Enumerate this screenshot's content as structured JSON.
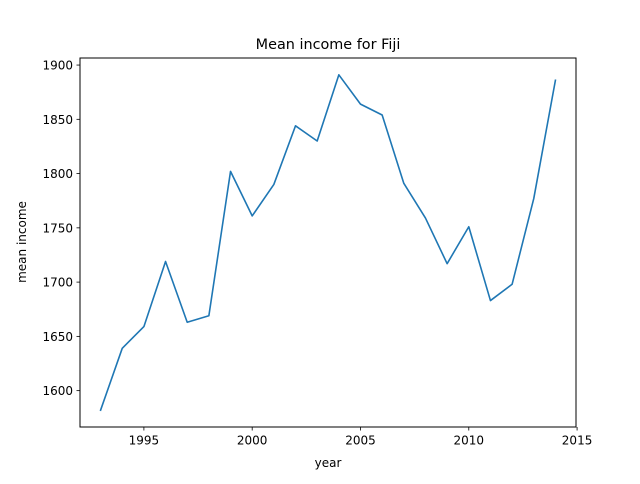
{
  "chart_data": {
    "type": "line",
    "title": "Mean income for Fiji",
    "xlabel": "year",
    "ylabel": "mean income",
    "xlim": [
      1992.05,
      2014.95
    ],
    "ylim": [
      1566.5,
      1906.5
    ],
    "grid": false,
    "x_ticks": [
      1995,
      2000,
      2005,
      2010,
      2015
    ],
    "x_tick_labels": [
      "1995",
      "2000",
      "2005",
      "2010",
      "2015"
    ],
    "y_ticks": [
      1600,
      1650,
      1700,
      1750,
      1800,
      1850,
      1900
    ],
    "y_tick_labels": [
      "1600",
      "1650",
      "1700",
      "1750",
      "1800",
      "1850",
      "1900"
    ],
    "series": [
      {
        "color": "#1f77b4",
        "x": [
          1993,
          1994,
          1995,
          1996,
          1997,
          1998,
          1999,
          2000,
          2001,
          2002,
          2003,
          2004,
          2005,
          2006,
          2007,
          2008,
          2009,
          2010,
          2011,
          2012,
          2013,
          2014
        ],
        "y": [
          1582,
          1639,
          1659,
          1719,
          1663,
          1669,
          1802,
          1761,
          1790,
          1844,
          1830,
          1891,
          1864,
          1854,
          1791,
          1759,
          1717,
          1751,
          1683,
          1698,
          1777,
          1886
        ]
      }
    ]
  }
}
